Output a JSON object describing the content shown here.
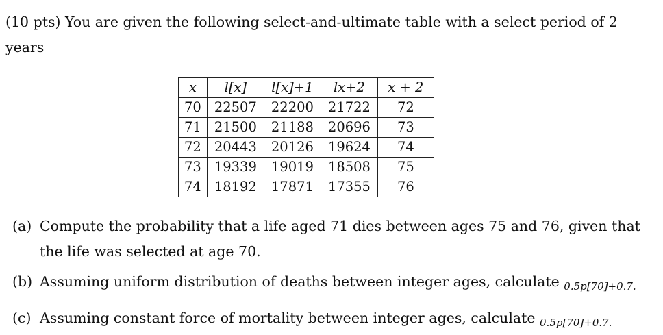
{
  "intro": {
    "text": "(10 pts) You are given the following select-and-ultimate table with a select period of 2 years"
  },
  "table": {
    "headers": [
      "x",
      "l[x]",
      "l[x]+1",
      "lx+2",
      "x + 2"
    ],
    "rows": [
      [
        "70",
        "22507",
        "22200",
        "21722",
        "72"
      ],
      [
        "71",
        "21500",
        "21188",
        "20696",
        "73"
      ],
      [
        "72",
        "20443",
        "20126",
        "19624",
        "74"
      ],
      [
        "73",
        "19339",
        "19019",
        "18508",
        "75"
      ],
      [
        "74",
        "18192",
        "17871",
        "17355",
        "76"
      ]
    ]
  },
  "parts": [
    {
      "label": "(a)",
      "text": "Compute the probability that a life aged 71 dies between ages 75 and 76, given that the life was selected at age 70."
    },
    {
      "label": "(b)",
      "text": "Assuming uniform distribution of deaths between integer ages, calculate",
      "math": "0.5p[70]+0.7."
    },
    {
      "label": "(c)",
      "text": "Assuming constant force of mortality between integer ages, calculate",
      "math": "0.5p[70]+0.7."
    }
  ]
}
